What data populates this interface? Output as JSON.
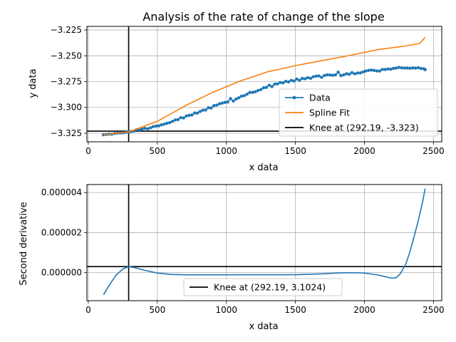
{
  "chart_data": [
    {
      "type": "line",
      "title": "Analysis of the rate of change of the slope",
      "xlabel": "x data",
      "ylabel": "y data",
      "xlim": [
        -10,
        2560
      ],
      "ylim": [
        -3.3333,
        -3.2215
      ],
      "grid": true,
      "legend_position": "center-right",
      "x_ticks": [
        0,
        500,
        1000,
        1500,
        2000,
        2500
      ],
      "x_tick_labels": [
        "0",
        "500",
        "1000",
        "1500",
        "2000",
        "2500"
      ],
      "y_ticks": [
        -3.325,
        -3.3,
        -3.275,
        -3.25,
        -3.225
      ],
      "y_tick_labels": [
        "−3.325",
        "−3.300",
        "−3.275",
        "−3.250",
        "−3.225"
      ],
      "series": [
        {
          "name": "Data",
          "color": "#1f77b4",
          "marker": "circle",
          "x": [
            110,
            130,
            150,
            170,
            190,
            210,
            230,
            250,
            270,
            290,
            310,
            330,
            350,
            370,
            390,
            410,
            430,
            450,
            470,
            490,
            510,
            530,
            550,
            570,
            590,
            610,
            630,
            650,
            670,
            690,
            710,
            730,
            750,
            770,
            790,
            810,
            830,
            850,
            870,
            890,
            910,
            930,
            950,
            970,
            990,
            1010,
            1030,
            1050,
            1070,
            1090,
            1110,
            1130,
            1150,
            1170,
            1190,
            1210,
            1230,
            1250,
            1270,
            1290,
            1310,
            1330,
            1350,
            1370,
            1390,
            1410,
            1430,
            1450,
            1470,
            1490,
            1510,
            1530,
            1550,
            1570,
            1590,
            1610,
            1630,
            1650,
            1670,
            1690,
            1710,
            1730,
            1750,
            1770,
            1790,
            1810,
            1830,
            1850,
            1870,
            1890,
            1910,
            1930,
            1950,
            1970,
            1990,
            2010,
            2030,
            2050,
            2070,
            2090,
            2110,
            2130,
            2150,
            2170,
            2190,
            2210,
            2230,
            2250,
            2270,
            2290,
            2310,
            2330,
            2350,
            2370,
            2390,
            2410,
            2430,
            2440
          ],
          "y": [
            -3.3265,
            -3.3262,
            -3.3258,
            -3.3259,
            -3.3252,
            -3.3249,
            -3.3247,
            -3.3246,
            -3.3242,
            -3.3237,
            -3.3233,
            -3.3229,
            -3.3215,
            -3.3218,
            -3.321,
            -3.3203,
            -3.3207,
            -3.3198,
            -3.3186,
            -3.3181,
            -3.3179,
            -3.3169,
            -3.3162,
            -3.3154,
            -3.3147,
            -3.3135,
            -3.3121,
            -3.3118,
            -3.3099,
            -3.3102,
            -3.3083,
            -3.3077,
            -3.3073,
            -3.3054,
            -3.3055,
            -3.3039,
            -3.3027,
            -3.3025,
            -3.3003,
            -3.3006,
            -3.2982,
            -3.2978,
            -3.2965,
            -3.2958,
            -3.2951,
            -3.2948,
            -3.2915,
            -3.2939,
            -3.2919,
            -3.2907,
            -3.2891,
            -3.2886,
            -3.2872,
            -3.2855,
            -3.2855,
            -3.2848,
            -3.2836,
            -3.2827,
            -3.281,
            -3.2806,
            -3.2785,
            -3.2798,
            -3.2774,
            -3.2773,
            -3.2759,
            -3.2762,
            -3.2748,
            -3.2753,
            -3.2738,
            -3.2744,
            -3.2725,
            -3.2737,
            -3.2719,
            -3.2723,
            -3.2712,
            -3.2718,
            -3.2703,
            -3.2697,
            -3.2695,
            -3.2709,
            -3.2691,
            -3.2685,
            -3.2686,
            -3.2689,
            -3.2685,
            -3.2659,
            -3.2692,
            -3.2684,
            -3.2674,
            -3.2679,
            -3.2663,
            -3.2675,
            -3.2667,
            -3.2666,
            -3.2656,
            -3.2648,
            -3.2642,
            -3.2638,
            -3.2642,
            -3.2647,
            -3.2648,
            -3.2632,
            -3.2633,
            -3.2628,
            -3.263,
            -3.2622,
            -3.2619,
            -3.2612,
            -3.2617,
            -3.2618,
            -3.2618,
            -3.2621,
            -3.2617,
            -3.2619,
            -3.2616,
            -3.2623,
            -3.2625,
            -3.2635
          ]
        },
        {
          "name": "Spline Fit",
          "color": "#ff7f0e",
          "x": [
            110,
            300,
            500,
            700,
            900,
            1100,
            1300,
            1500,
            1700,
            1900,
            2100,
            2300,
            2400,
            2440
          ],
          "y": [
            -3.3265,
            -3.3235,
            -3.3135,
            -3.2985,
            -3.2855,
            -3.2745,
            -3.2655,
            -3.2595,
            -3.2545,
            -3.2495,
            -3.244,
            -3.2405,
            -3.238,
            -3.2322
          ]
        }
      ],
      "reference_lines": [
        {
          "orientation": "vertical",
          "x": 292.19,
          "color": "#000000"
        },
        {
          "orientation": "horizontal",
          "y": -3.323,
          "color": "#000000"
        }
      ],
      "legend": {
        "entries": [
          {
            "label": "Data",
            "color": "#1f77b4"
          },
          {
            "label": "Spline Fit",
            "color": "#ff7f0e"
          },
          {
            "label": "Knee at (292.19, -3.323)",
            "color": "#000000"
          }
        ]
      }
    },
    {
      "type": "line",
      "title": "",
      "xlabel": "x data",
      "ylabel": "Second derivative",
      "xlim": [
        -10,
        2560
      ],
      "ylim": [
        -1.4e-06,
        4.4e-06
      ],
      "grid": true,
      "legend_position": "lower-center",
      "x_ticks": [
        0,
        500,
        1000,
        1500,
        2000,
        2500
      ],
      "x_tick_labels": [
        "0",
        "500",
        "1000",
        "1500",
        "2000",
        "2500"
      ],
      "y_ticks": [
        0,
        2e-06,
        4e-06
      ],
      "y_tick_labels": [
        "0.000000",
        "0.000002",
        "0.000004"
      ],
      "series": [
        {
          "name": "",
          "color": "#1f77b4",
          "x": [
            110,
            150,
            200,
            250,
            292,
            350,
            400,
            500,
            600,
            700,
            800,
            1000,
            1200,
            1500,
            1700,
            1800,
            1900,
            2000,
            2100,
            2150,
            2200,
            2230,
            2260,
            2300,
            2330,
            2360,
            2390,
            2420,
            2440
          ],
          "y": [
            -1.1e-06,
            -6.5e-07,
            -1.3e-07,
            1.8e-07,
            3e-07,
            2.3e-07,
            1.3e-07,
            -2e-08,
            -9e-08,
            -1.1e-07,
            -1.1e-07,
            -1.1e-07,
            -1.05e-07,
            -1.05e-07,
            -6e-08,
            -2e-08,
            0,
            -2e-08,
            -1.2e-07,
            -2e-07,
            -2.8e-07,
            -2.5e-07,
            -5e-08,
            4.3e-07,
            1.05e-06,
            1.8e-06,
            2.6e-06,
            3.5e-06,
            4.2e-06
          ]
        }
      ],
      "reference_lines": [
        {
          "orientation": "vertical",
          "x": 292.19,
          "color": "#000000"
        },
        {
          "orientation": "horizontal",
          "y": 3e-07,
          "color": "#000000"
        }
      ],
      "legend": {
        "entries": [
          {
            "label": "Knee at (292.19, 3.1024)",
            "color": "#000000"
          }
        ]
      }
    }
  ]
}
